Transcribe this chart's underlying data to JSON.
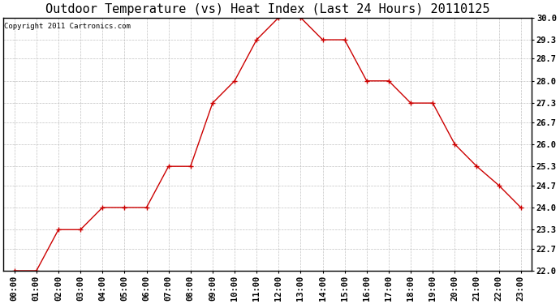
{
  "title": "Outdoor Temperature (vs) Heat Index (Last 24 Hours) 20110125",
  "copyright": "Copyright 2011 Cartronics.com",
  "hours": [
    "00:00",
    "01:00",
    "02:00",
    "03:00",
    "04:00",
    "05:00",
    "06:00",
    "07:00",
    "08:00",
    "09:00",
    "10:00",
    "11:00",
    "12:00",
    "13:00",
    "14:00",
    "15:00",
    "16:00",
    "17:00",
    "18:00",
    "19:00",
    "20:00",
    "21:00",
    "22:00",
    "23:00"
  ],
  "values": [
    22.0,
    22.0,
    23.3,
    23.3,
    24.0,
    24.0,
    24.0,
    25.3,
    25.3,
    27.3,
    28.0,
    29.3,
    30.0,
    30.0,
    29.3,
    29.3,
    28.0,
    28.0,
    27.3,
    27.3,
    26.0,
    25.3,
    24.7,
    24.0
  ],
  "ylim": [
    22.0,
    30.0
  ],
  "yticks": [
    22.0,
    22.7,
    23.3,
    24.0,
    24.7,
    25.3,
    26.0,
    26.7,
    27.3,
    28.0,
    28.7,
    29.3,
    30.0
  ],
  "line_color": "#cc0000",
  "marker": "+",
  "bg_color": "#ffffff",
  "grid_color": "#bbbbbb",
  "title_fontsize": 11,
  "copyright_fontsize": 6.5,
  "tick_fontsize": 7.5
}
